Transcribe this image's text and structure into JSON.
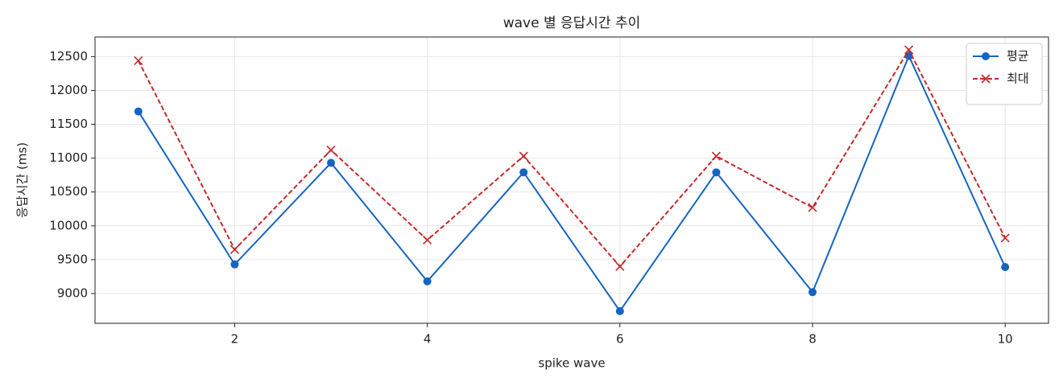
{
  "chart_data": {
    "type": "line",
    "title": "wave 별 응답시간 추이",
    "x_label": "spike wave",
    "y_label": "응답시간 (ms)",
    "x": [
      1,
      2,
      3,
      4,
      5,
      6,
      7,
      8,
      9,
      10
    ],
    "series": [
      {
        "name": "평균",
        "color": "#1565c0",
        "marker": "circle",
        "dash": "solid",
        "values": [
          11690,
          9430,
          10930,
          9180,
          10790,
          8740,
          10790,
          9020,
          12510,
          9390
        ]
      },
      {
        "name": "최대",
        "color": "#c62828",
        "marker": "x",
        "dash": "dashed",
        "values": [
          12440,
          9650,
          11120,
          9790,
          11030,
          9400,
          11030,
          10270,
          12600,
          9820
        ]
      }
    ],
    "xlim": [
      0.55,
      10.45
    ],
    "xticks": [
      2,
      4,
      6,
      8,
      10
    ],
    "ylim": [
      8560,
      12790
    ],
    "yticks": [
      9000,
      9500,
      10000,
      10500,
      11000,
      11500,
      12000,
      12500
    ],
    "grid": true,
    "legend": "upper right"
  }
}
